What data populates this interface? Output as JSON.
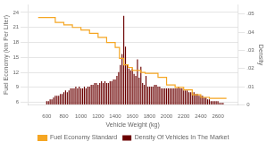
{
  "chart_data": {
    "type": "bar",
    "xlabel": "Vehicle Weight (kg)",
    "ylabel": "Fuel Economy (km Per Liter)",
    "y2label": "Density",
    "xlim": [
      490,
      2720
    ],
    "xticks": [
      600,
      800,
      1000,
      1200,
      1400,
      1600,
      1800,
      2000,
      2200,
      2400,
      2600
    ],
    "ylim": [
      5.5,
      25.5
    ],
    "yticks": [
      6,
      9,
      12,
      15,
      18,
      21,
      24
    ],
    "y2lim": [
      0,
      0.055
    ],
    "y2ticks": [
      0,
      {
        "value": 0.01,
        "label": ".01"
      },
      {
        "value": 0.02,
        "label": ".02"
      },
      {
        "value": 0.03,
        "label": ".03"
      },
      {
        "value": 0.04,
        "label": ".04"
      },
      {
        "value": 0.05,
        "label": ".05"
      }
    ],
    "grid": "y",
    "legend": "bottom",
    "series": [
      {
        "name": "Fuel Economy Standard",
        "type": "line",
        "line_style": "step",
        "color": "#F5A623",
        "steps": [
          [
            500,
            700,
            23.0
          ],
          [
            700,
            800,
            22.0
          ],
          [
            800,
            900,
            21.5
          ],
          [
            900,
            1000,
            21.0
          ],
          [
            1000,
            1100,
            20.5
          ],
          [
            1100,
            1200,
            19.8
          ],
          [
            1200,
            1300,
            19.0
          ],
          [
            1300,
            1400,
            18.0
          ],
          [
            1400,
            1450,
            17.0
          ],
          [
            1450,
            1500,
            14.8
          ],
          [
            1500,
            1550,
            13.5
          ],
          [
            1550,
            1600,
            13.0
          ],
          [
            1600,
            1700,
            12.4
          ],
          [
            1700,
            1750,
            12.0
          ],
          [
            1750,
            1900,
            11.8
          ],
          [
            1900,
            2000,
            11.0
          ],
          [
            2000,
            2100,
            9.5
          ],
          [
            2100,
            2200,
            9.0
          ],
          [
            2200,
            2300,
            8.5
          ],
          [
            2300,
            2400,
            7.5
          ],
          [
            2400,
            2500,
            7.0
          ],
          [
            2500,
            2700,
            6.8
          ]
        ]
      },
      {
        "name": "Density Of Vehicles In The Market",
        "type": "bar",
        "color": "#6B0000",
        "axis": "y2",
        "x": [
          600,
          620,
          640,
          660,
          680,
          700,
          720,
          740,
          760,
          780,
          800,
          820,
          840,
          860,
          880,
          900,
          920,
          940,
          960,
          980,
          1000,
          1020,
          1040,
          1060,
          1080,
          1100,
          1120,
          1140,
          1160,
          1180,
          1200,
          1220,
          1240,
          1260,
          1280,
          1300,
          1320,
          1340,
          1360,
          1380,
          1400,
          1420,
          1440,
          1460,
          1480,
          1500,
          1520,
          1540,
          1560,
          1580,
          1600,
          1620,
          1640,
          1660,
          1680,
          1700,
          1720,
          1740,
          1760,
          1780,
          1800,
          1820,
          1840,
          1860,
          1880,
          1900,
          1920,
          1940,
          1960,
          1980,
          2000,
          2020,
          2040,
          2060,
          2080,
          2100,
          2120,
          2140,
          2160,
          2180,
          2200,
          2220,
          2240,
          2260,
          2280,
          2300,
          2320,
          2340,
          2360,
          2380,
          2400,
          2420,
          2440,
          2460,
          2480,
          2500,
          2520,
          2540,
          2560,
          2580,
          2600,
          2620,
          2640,
          2660
        ],
        "values": [
          0.002,
          0.002,
          0.003,
          0.003,
          0.004,
          0.005,
          0.005,
          0.005,
          0.006,
          0.006,
          0.007,
          0.008,
          0.007,
          0.008,
          0.009,
          0.009,
          0.009,
          0.01,
          0.009,
          0.01,
          0.009,
          0.009,
          0.01,
          0.009,
          0.01,
          0.01,
          0.011,
          0.011,
          0.012,
          0.012,
          0.011,
          0.012,
          0.013,
          0.012,
          0.013,
          0.012,
          0.012,
          0.013,
          0.013,
          0.014,
          0.014,
          0.016,
          0.018,
          0.022,
          0.028,
          0.049,
          0.032,
          0.022,
          0.02,
          0.019,
          0.02,
          0.017,
          0.016,
          0.025,
          0.015,
          0.021,
          0.012,
          0.011,
          0.016,
          0.01,
          0.01,
          0.01,
          0.01,
          0.011,
          0.011,
          0.01,
          0.01,
          0.009,
          0.009,
          0.009,
          0.009,
          0.009,
          0.009,
          0.009,
          0.009,
          0.009,
          0.009,
          0.01,
          0.009,
          0.009,
          0.008,
          0.008,
          0.008,
          0.007,
          0.007,
          0.007,
          0.007,
          0.006,
          0.006,
          0.005,
          0.005,
          0.005,
          0.004,
          0.004,
          0.003,
          0.003,
          0.002,
          0.002,
          0.002,
          0.002,
          0.002,
          0.001,
          0.001,
          0.001
        ]
      }
    ]
  }
}
